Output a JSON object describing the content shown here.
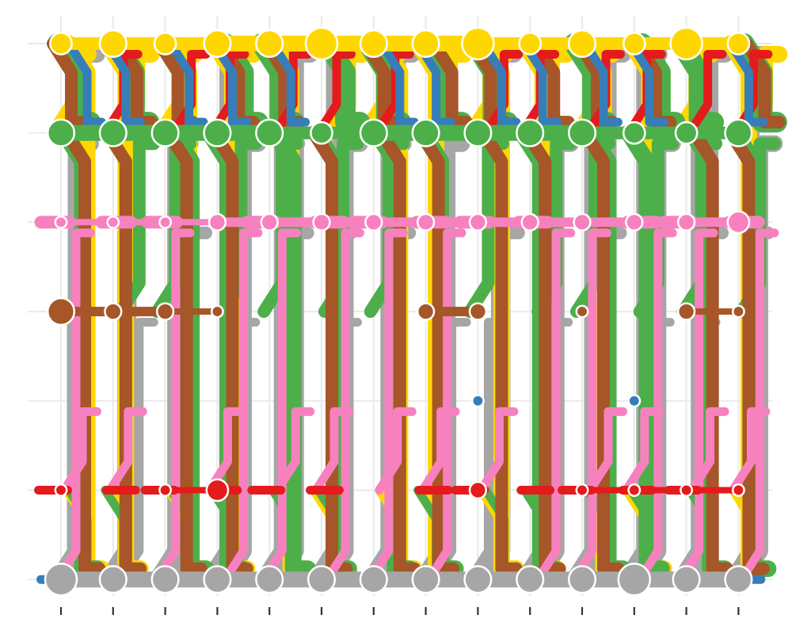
{
  "chart_data": {
    "type": "stream-flow",
    "title": "",
    "xlabel": "",
    "ylabel": "",
    "x": [
      1,
      2,
      3,
      4,
      5,
      6,
      7,
      8,
      9,
      10,
      11,
      12,
      13,
      14
    ],
    "x_tick_labels": [
      "",
      "",
      "",
      "",
      "",
      "",
      "",
      "",
      "",
      "",
      "",
      "",
      "",
      ""
    ],
    "y_levels": [
      "",
      "",
      "",
      "",
      "",
      "",
      ""
    ],
    "grid": true,
    "legend": "none",
    "colors": {
      "yellow": "#FFD700",
      "green": "#4DAF4A",
      "brown": "#A65628",
      "red": "#E41A1C",
      "blue": "#377EB8",
      "pink": "#F781BF",
      "grey": "#A6A6A6"
    },
    "nodes": [
      {
        "row": 1,
        "color": "yellow",
        "values": [
          3,
          4,
          3,
          4,
          4,
          5,
          4,
          4,
          5,
          3,
          4,
          3,
          5,
          3
        ]
      },
      {
        "row": 2,
        "color": "green",
        "values": [
          4,
          4,
          4,
          4,
          4,
          3,
          4,
          4,
          4,
          4,
          4,
          3,
          3,
          4
        ]
      },
      {
        "row": 3,
        "color": "pink",
        "values": [
          1,
          1,
          1,
          2,
          2,
          2,
          2,
          2,
          2,
          2,
          2,
          2,
          2,
          3
        ]
      },
      {
        "row": 4,
        "color": "brown",
        "values": [
          4,
          2,
          2,
          1,
          0,
          0,
          0,
          2,
          2,
          0,
          1,
          0,
          2,
          1
        ]
      },
      {
        "row": 5,
        "color": "blue",
        "values": [
          0,
          0,
          0,
          0,
          0,
          0,
          0,
          0,
          1,
          0,
          0,
          1,
          0,
          0
        ]
      },
      {
        "row": 6,
        "color": "red",
        "values": [
          1,
          0,
          1,
          3,
          0,
          0,
          0,
          0,
          2,
          0,
          1,
          1,
          1,
          1
        ]
      },
      {
        "row": 7,
        "color": "grey",
        "values": [
          5,
          4,
          4,
          4,
          4,
          4,
          4,
          4,
          4,
          4,
          4,
          5,
          4,
          4
        ]
      }
    ],
    "flows": [
      {
        "color": "grey",
        "from_row": 7,
        "to_row": 1,
        "width": 3
      },
      {
        "color": "grey",
        "from_row": 7,
        "to_row": 2,
        "width": 3
      },
      {
        "color": "grey",
        "from_row": 7,
        "to_row": 3,
        "width": 2
      },
      {
        "color": "grey",
        "from_row": 7,
        "to_row": 4,
        "width": 1
      },
      {
        "color": "yellow",
        "from_row": 1,
        "to_row": 7,
        "width": 3
      },
      {
        "color": "yellow",
        "from_row": 2,
        "to_row": 1,
        "width": 3
      },
      {
        "color": "yellow",
        "from_row": 6,
        "to_row": 7,
        "width": 1
      },
      {
        "color": "green",
        "from_row": 1,
        "to_row": 2,
        "width": 4
      },
      {
        "color": "green",
        "from_row": 2,
        "to_row": 7,
        "width": 3
      },
      {
        "color": "green",
        "from_row": 4,
        "to_row": 2,
        "width": 2
      },
      {
        "color": "green",
        "from_row": 6,
        "to_row": 7,
        "width": 1
      },
      {
        "color": "brown",
        "from_row": 1,
        "to_row": 2,
        "width": 2
      },
      {
        "color": "brown",
        "from_row": 2,
        "to_row": 7,
        "width": 2
      },
      {
        "color": "pink",
        "from_row": 3,
        "to_row": 3,
        "width": 2
      },
      {
        "color": "pink",
        "from_row": 6,
        "to_row": 5,
        "width": 1
      },
      {
        "color": "pink",
        "from_row": 7,
        "to_row": 3,
        "width": 1
      },
      {
        "color": "red",
        "from_row": 2,
        "to_row": 1,
        "width": 1
      },
      {
        "color": "red",
        "from_row": 6,
        "to_row": 6,
        "width": 1
      },
      {
        "color": "blue",
        "from_row": 1,
        "to_row": 2,
        "width": 1
      },
      {
        "color": "blue",
        "from_row": 7,
        "to_row": 7,
        "width": 1
      }
    ]
  }
}
